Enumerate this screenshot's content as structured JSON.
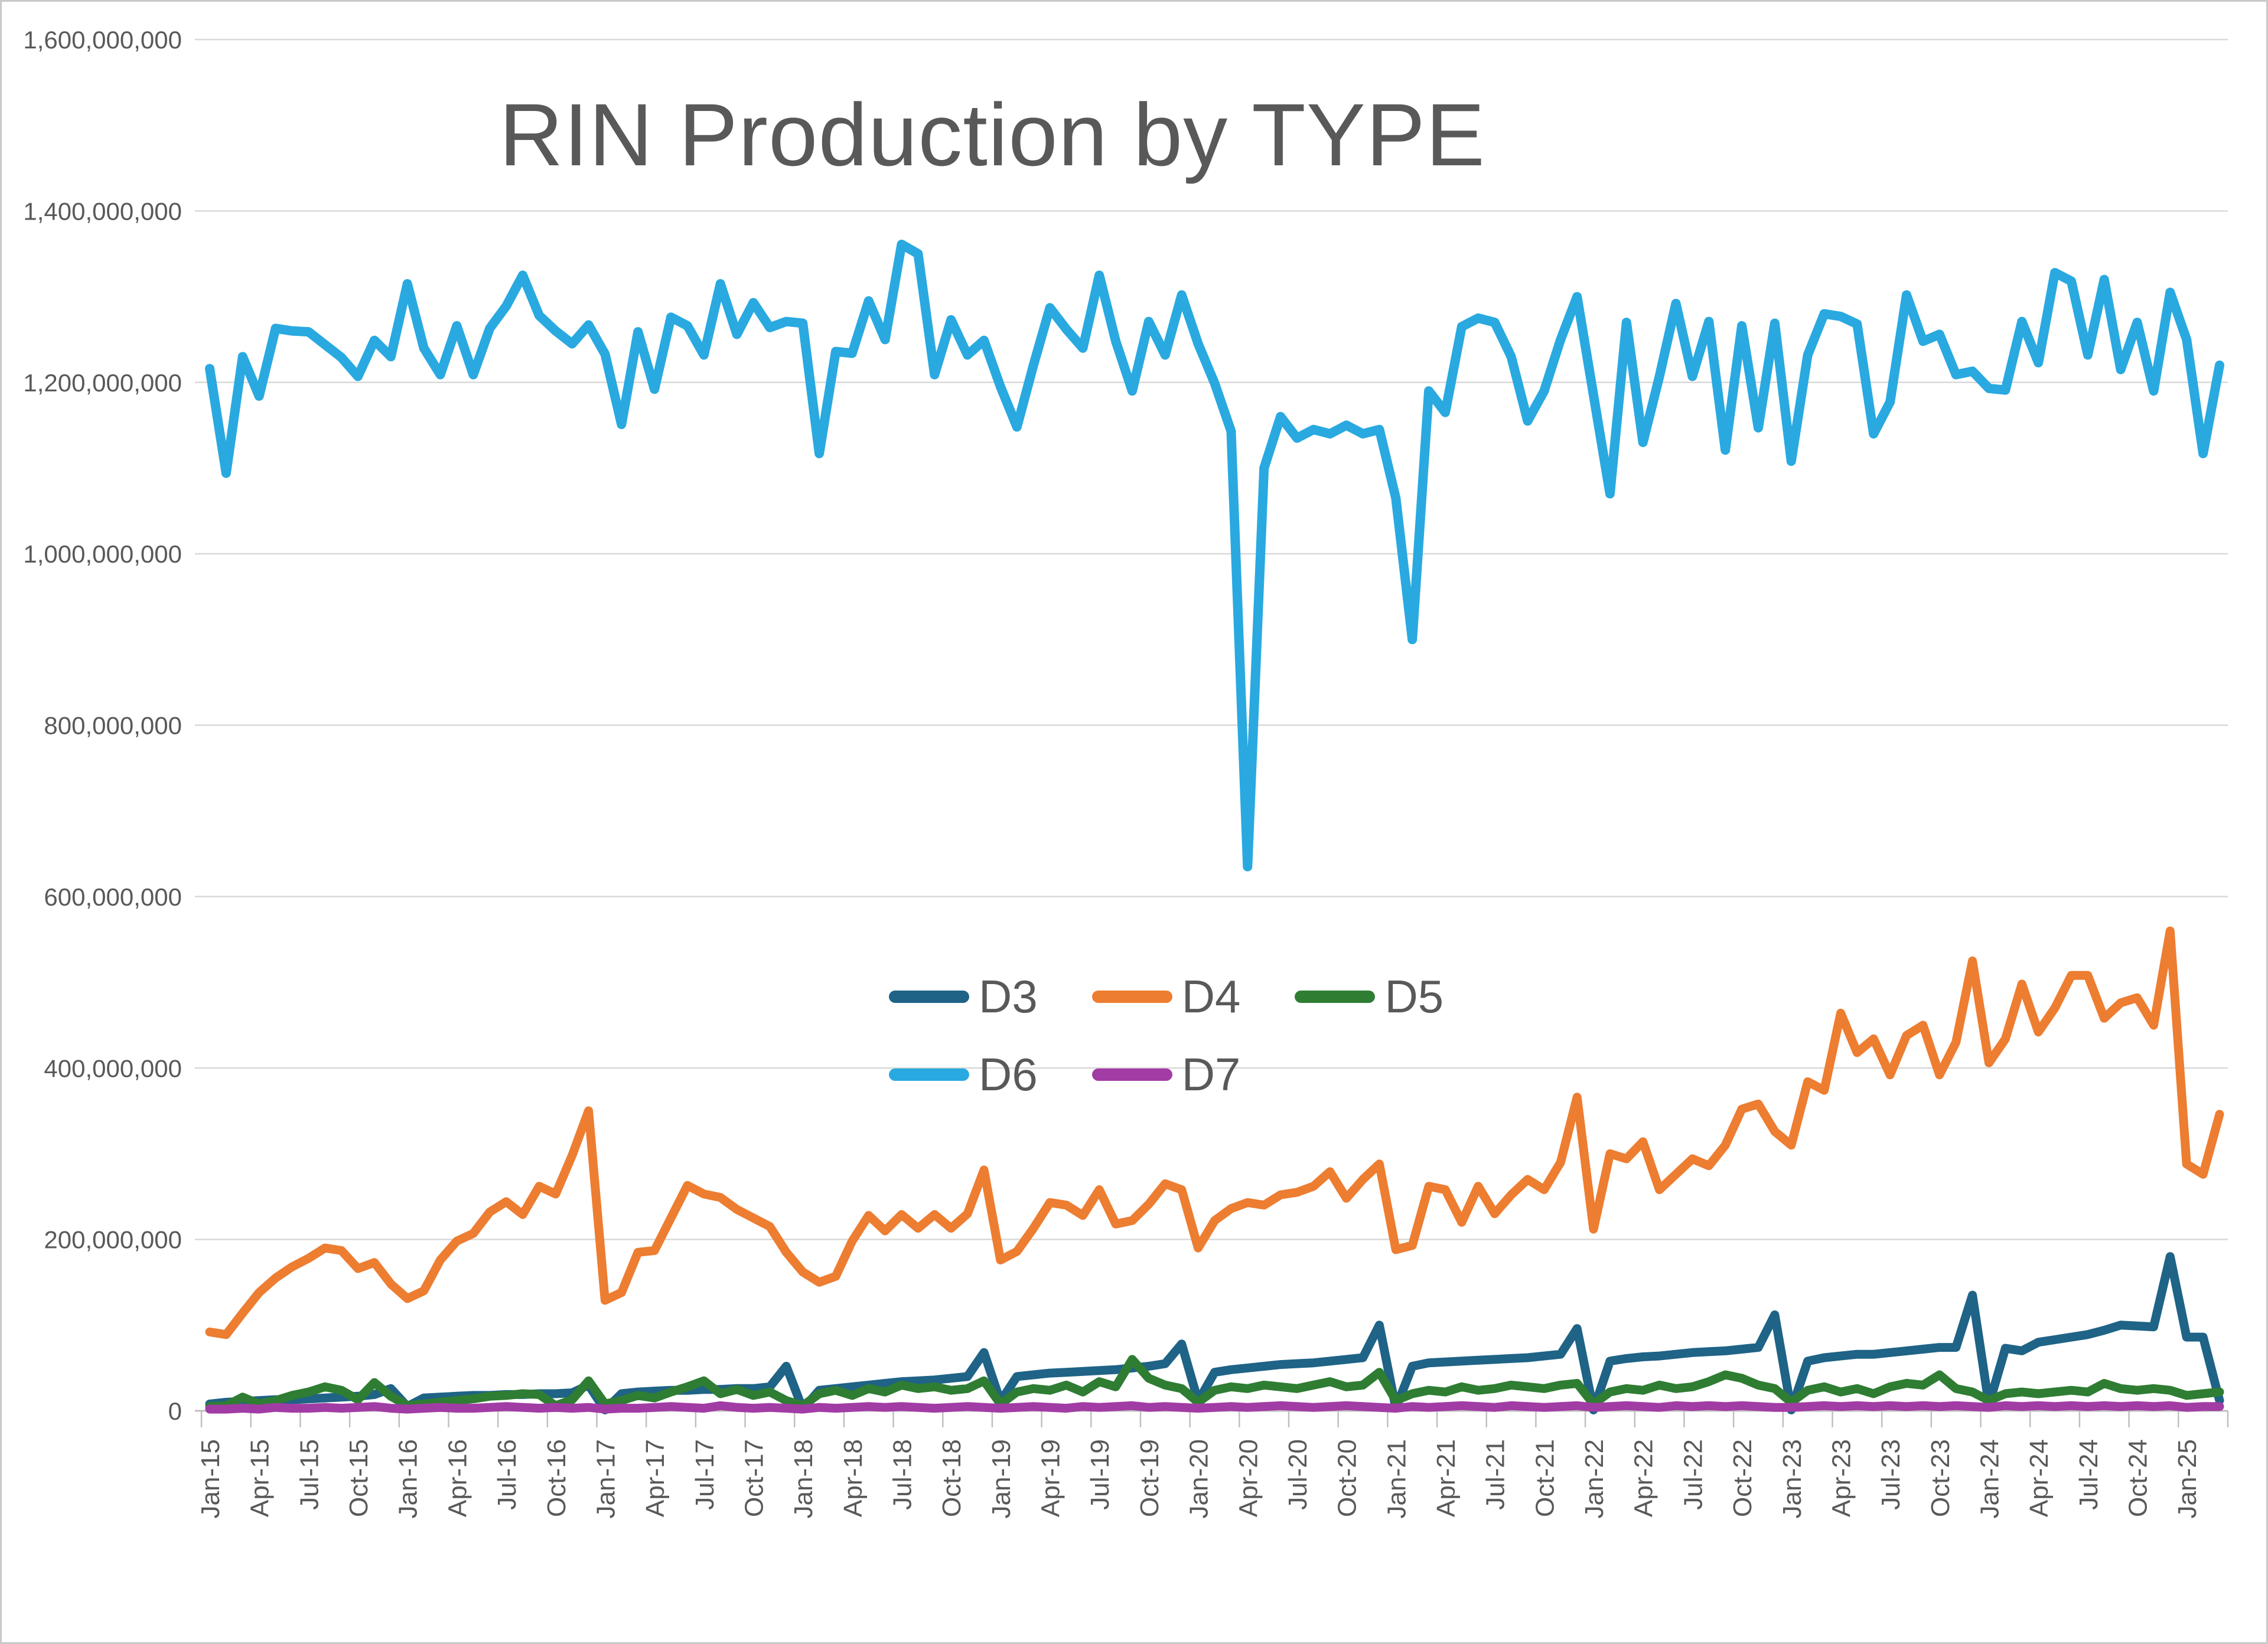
{
  "title": "RIN Production by TYPE",
  "axes": {
    "y_labels": [
      "1,600,000,000",
      "1,400,000,000",
      "1,200,000,000",
      "1,000,000,000",
      "800,000,000",
      "600,000,000",
      "400,000,000",
      "200,000,000",
      "0"
    ],
    "x_first_label": "Jan-15",
    "x_last_label": "Jan-25"
  },
  "colors": {
    "D3": "#1F6386",
    "D4": "#ED7D31",
    "D5": "#2F7D33",
    "D6": "#29A9E0",
    "D7": "#A23CA5",
    "text": "#595959",
    "gridline": "#D9D9D9",
    "axis": "#BFBFBF"
  },
  "chart_data": {
    "type": "line",
    "title": "RIN Production by TYPE",
    "xlabel": "",
    "ylabel": "",
    "values_unit": "RINs (values stored in millions)",
    "ylim": [
      0,
      1600
    ],
    "gridline_step": 200,
    "tick_every": 3,
    "legend_position": "center-middle, two rows, no fill",
    "grid": "horizontal only",
    "months": [
      "Jan-15",
      "Feb-15",
      "Mar-15",
      "Apr-15",
      "May-15",
      "Jun-15",
      "Jul-15",
      "Aug-15",
      "Sep-15",
      "Oct-15",
      "Nov-15",
      "Dec-15",
      "Jan-16",
      "Feb-16",
      "Mar-16",
      "Apr-16",
      "May-16",
      "Jun-16",
      "Jul-16",
      "Aug-16",
      "Sep-16",
      "Oct-16",
      "Nov-16",
      "Dec-16",
      "Jan-17",
      "Feb-17",
      "Mar-17",
      "Apr-17",
      "May-17",
      "Jun-17",
      "Jul-17",
      "Aug-17",
      "Sep-17",
      "Oct-17",
      "Nov-17",
      "Dec-17",
      "Jan-18",
      "Feb-18",
      "Mar-18",
      "Apr-18",
      "May-18",
      "Jun-18",
      "Jul-18",
      "Aug-18",
      "Sep-18",
      "Oct-18",
      "Nov-18",
      "Dec-18",
      "Jan-19",
      "Feb-19",
      "Mar-19",
      "Apr-19",
      "May-19",
      "Jun-19",
      "Jul-19",
      "Aug-19",
      "Sep-19",
      "Oct-19",
      "Nov-19",
      "Dec-19",
      "Jan-20",
      "Feb-20",
      "Mar-20",
      "Apr-20",
      "May-20",
      "Jun-20",
      "Jul-20",
      "Aug-20",
      "Sep-20",
      "Oct-20",
      "Nov-20",
      "Dec-20",
      "Jan-21",
      "Feb-21",
      "Mar-21",
      "Apr-21",
      "May-21",
      "Jun-21",
      "Jul-21",
      "Aug-21",
      "Sep-21",
      "Oct-21",
      "Nov-21",
      "Dec-21",
      "Jan-22",
      "Feb-22",
      "Mar-22",
      "Apr-22",
      "May-22",
      "Jun-22",
      "Jul-22",
      "Aug-22",
      "Sep-22",
      "Oct-22",
      "Nov-22",
      "Dec-22",
      "Jan-23",
      "Feb-23",
      "Mar-23",
      "Apr-23",
      "May-23",
      "Jun-23",
      "Jul-23",
      "Aug-23",
      "Sep-23",
      "Oct-23",
      "Nov-23",
      "Dec-23",
      "Jan-24",
      "Feb-24",
      "Mar-24",
      "Apr-24",
      "May-24",
      "Jun-24",
      "Jul-24",
      "Aug-24",
      "Sep-24",
      "Oct-24",
      "Nov-24",
      "Dec-24",
      "Jan-25",
      "Feb-25",
      "Mar-25"
    ],
    "series": [
      {
        "name": "D3",
        "color_key": "D3",
        "values": [
          8,
          10,
          11,
          12,
          13,
          13,
          14,
          15,
          16,
          17,
          19,
          26,
          5,
          15,
          16,
          17,
          18,
          18,
          19,
          19,
          20,
          20,
          21,
          30,
          1,
          20,
          22,
          23,
          24,
          24,
          25,
          25,
          26,
          26,
          28,
          52,
          2,
          24,
          26,
          28,
          30,
          32,
          34,
          35,
          36,
          38,
          40,
          68,
          11,
          40,
          42,
          44,
          45,
          46,
          47,
          48,
          50,
          52,
          55,
          78,
          11,
          45,
          48,
          50,
          52,
          54,
          55,
          56,
          58,
          60,
          62,
          100,
          3,
          52,
          56,
          57,
          58,
          59,
          60,
          61,
          62,
          64,
          66,
          96,
          1,
          58,
          61,
          63,
          64,
          66,
          68,
          69,
          70,
          72,
          74,
          112,
          1,
          58,
          62,
          64,
          66,
          66,
          68,
          70,
          72,
          74,
          74,
          135,
          7,
          73,
          70,
          80,
          83,
          86,
          89,
          94,
          100,
          99,
          98,
          180,
          86,
          86,
          12
        ]
      },
      {
        "name": "D4",
        "color_key": "D4",
        "values": [
          92,
          89,
          114,
          138,
          155,
          168,
          178,
          190,
          187,
          166,
          173,
          148,
          131,
          140,
          176,
          198,
          207,
          232,
          244,
          229,
          262,
          253,
          298,
          350,
          129,
          138,
          185,
          187,
          225,
          263,
          253,
          249,
          235,
          225,
          215,
          185,
          162,
          150,
          157,
          198,
          228,
          210,
          229,
          213,
          229,
          213,
          230,
          281,
          176,
          186,
          213,
          243,
          240,
          228,
          258,
          218,
          222,
          241,
          265,
          258,
          190,
          222,
          236,
          243,
          240,
          252,
          255,
          262,
          279,
          248,
          270,
          288,
          188,
          193,
          262,
          258,
          220,
          262,
          230,
          252,
          270,
          258,
          290,
          366,
          212,
          300,
          294,
          314,
          258,
          276,
          294,
          286,
          310,
          352,
          358,
          326,
          310,
          384,
          374,
          464,
          418,
          434,
          392,
          438,
          450,
          392,
          430,
          525,
          406,
          434,
          498,
          442,
          470,
          508,
          508,
          458,
          476,
          482,
          450,
          560,
          288,
          276,
          346
        ]
      },
      {
        "name": "D5",
        "color_key": "D5",
        "values": [
          5,
          6,
          16,
          8,
          12,
          18,
          22,
          28,
          24,
          13,
          33,
          17,
          6,
          8,
          10,
          12,
          14,
          17,
          18,
          20,
          19,
          6,
          13,
          35,
          8,
          12,
          18,
          15,
          22,
          28,
          35,
          20,
          25,
          18,
          22,
          12,
          6,
          20,
          24,
          18,
          26,
          22,
          30,
          26,
          28,
          24,
          26,
          35,
          8,
          22,
          26,
          24,
          30,
          22,
          34,
          28,
          60,
          38,
          30,
          26,
          10,
          24,
          28,
          26,
          30,
          28,
          26,
          30,
          34,
          28,
          30,
          45,
          12,
          20,
          24,
          22,
          28,
          24,
          26,
          30,
          28,
          26,
          30,
          32,
          8,
          22,
          26,
          24,
          30,
          26,
          28,
          34,
          42,
          38,
          30,
          26,
          10,
          24,
          28,
          22,
          26,
          20,
          28,
          32,
          30,
          42,
          26,
          22,
          12,
          20,
          22,
          20,
          22,
          24,
          22,
          32,
          26,
          24,
          26,
          24,
          18,
          20,
          22
        ]
      },
      {
        "name": "D6",
        "color_key": "D6",
        "values": [
          1216,
          1094,
          1230,
          1184,
          1263,
          1260,
          1259,
          1244,
          1229,
          1207,
          1249,
          1230,
          1315,
          1240,
          1209,
          1266,
          1209,
          1263,
          1289,
          1325,
          1278,
          1260,
          1245,
          1267,
          1233,
          1151,
          1259,
          1192,
          1276,
          1266,
          1232,
          1315,
          1256,
          1293,
          1264,
          1271,
          1269,
          1117,
          1236,
          1234,
          1295,
          1250,
          1361,
          1350,
          1209,
          1273,
          1232,
          1249,
          1195,
          1148,
          1220,
          1287,
          1262,
          1240,
          1325,
          1248,
          1190,
          1271,
          1232,
          1302,
          1245,
          1199,
          1143,
          635,
          1100,
          1160,
          1135,
          1145,
          1140,
          1150,
          1140,
          1145,
          1065,
          900,
          1190,
          1165,
          1265,
          1275,
          1270,
          1230,
          1155,
          1190,
          1250,
          1300,
          1185,
          1070,
          1270,
          1130,
          1207,
          1292,
          1207,
          1271,
          1121,
          1266,
          1147,
          1269,
          1108,
          1232,
          1280,
          1277,
          1268,
          1140,
          1177,
          1302,
          1248,
          1256,
          1209,
          1213,
          1193,
          1191,
          1271,
          1223,
          1328,
          1318,
          1232,
          1320,
          1215,
          1270,
          1190,
          1305,
          1250,
          1117,
          1220
        ]
      },
      {
        "name": "D7",
        "color_key": "D7",
        "values": [
          2,
          2,
          3,
          2,
          4,
          3,
          3,
          4,
          3,
          4,
          5,
          3,
          2,
          3,
          4,
          3,
          3,
          4,
          5,
          4,
          3,
          4,
          3,
          4,
          2,
          3,
          3,
          4,
          5,
          4,
          3,
          6,
          4,
          3,
          4,
          3,
          2,
          4,
          3,
          4,
          5,
          4,
          5,
          4,
          3,
          4,
          5,
          4,
          3,
          4,
          5,
          4,
          3,
          5,
          4,
          5,
          6,
          4,
          5,
          4,
          3,
          4,
          5,
          4,
          5,
          6,
          5,
          4,
          5,
          6,
          5,
          4,
          3,
          5,
          4,
          5,
          6,
          5,
          4,
          6,
          5,
          4,
          5,
          6,
          4,
          5,
          6,
          5,
          4,
          6,
          5,
          6,
          5,
          6,
          5,
          4,
          4,
          5,
          6,
          5,
          6,
          5,
          6,
          5,
          6,
          5,
          6,
          5,
          4,
          6,
          5,
          6,
          5,
          6,
          5,
          6,
          5,
          6,
          5,
          6,
          4,
          5,
          5
        ]
      }
    ]
  },
  "legend": {
    "items": [
      {
        "label": "D3",
        "color_key": "D3"
      },
      {
        "label": "D4",
        "color_key": "D4"
      },
      {
        "label": "D5",
        "color_key": "D5"
      },
      {
        "label": "D6",
        "color_key": "D6"
      },
      {
        "label": "D7",
        "color_key": "D7"
      }
    ]
  }
}
